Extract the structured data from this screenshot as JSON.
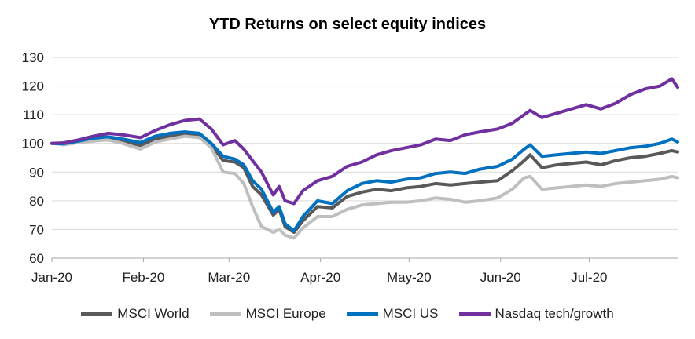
{
  "chart_data": {
    "type": "line",
    "title": "YTD Returns on select equity indices",
    "xlabel": "",
    "ylabel": "",
    "ylim": [
      60,
      130
    ],
    "yticks": [
      60,
      70,
      80,
      90,
      100,
      110,
      120,
      130
    ],
    "xlim": [
      "2020-01-01",
      "2020-07-31"
    ],
    "xticks": [
      "2020-01-01",
      "2020-02-01",
      "2020-03-01",
      "2020-04-01",
      "2020-05-01",
      "2020-06-01",
      "2020-07-01"
    ],
    "xtick_labels": [
      "Jan-20",
      "Feb-20",
      "Mar-20",
      "Apr-20",
      "May-20",
      "Jun-20",
      "Jul-20"
    ],
    "grid": "horizontal",
    "legend_position": "bottom",
    "series": [
      {
        "name": "MSCI World",
        "color": "#595959",
        "x": [
          "2020-01-01",
          "2020-01-05",
          "2020-01-10",
          "2020-01-15",
          "2020-01-20",
          "2020-01-25",
          "2020-01-31",
          "2020-02-05",
          "2020-02-10",
          "2020-02-15",
          "2020-02-20",
          "2020-02-24",
          "2020-02-28",
          "2020-03-03",
          "2020-03-06",
          "2020-03-09",
          "2020-03-12",
          "2020-03-16",
          "2020-03-18",
          "2020-03-20",
          "2020-03-23",
          "2020-03-26",
          "2020-03-31",
          "2020-04-05",
          "2020-04-10",
          "2020-04-15",
          "2020-04-20",
          "2020-04-25",
          "2020-04-30",
          "2020-05-05",
          "2020-05-10",
          "2020-05-15",
          "2020-05-20",
          "2020-05-25",
          "2020-05-31",
          "2020-06-05",
          "2020-06-09",
          "2020-06-11",
          "2020-06-15",
          "2020-06-20",
          "2020-06-25",
          "2020-06-30",
          "2020-07-05",
          "2020-07-10",
          "2020-07-15",
          "2020-07-20",
          "2020-07-25",
          "2020-07-29",
          "2020-07-31"
        ],
        "values": [
          100,
          99.8,
          100.6,
          101.4,
          101.9,
          100.8,
          99.3,
          101.5,
          102.4,
          103,
          102.5,
          99.5,
          94,
          93.5,
          91.5,
          85,
          82,
          75,
          77,
          71,
          69,
          73,
          78,
          77.5,
          81.5,
          83,
          84,
          83.5,
          84.5,
          85,
          86,
          85.5,
          86,
          86.5,
          87,
          90.5,
          94,
          96,
          91.5,
          92.5,
          93,
          93.5,
          92.5,
          94,
          95,
          95.5,
          96.5,
          97.5,
          97
        ]
      },
      {
        "name": "MSCI Europe",
        "color": "#bfbfbf",
        "x": [
          "2020-01-01",
          "2020-01-05",
          "2020-01-10",
          "2020-01-15",
          "2020-01-20",
          "2020-01-25",
          "2020-01-31",
          "2020-02-05",
          "2020-02-10",
          "2020-02-15",
          "2020-02-20",
          "2020-02-24",
          "2020-02-28",
          "2020-03-03",
          "2020-03-06",
          "2020-03-09",
          "2020-03-12",
          "2020-03-16",
          "2020-03-18",
          "2020-03-20",
          "2020-03-23",
          "2020-03-26",
          "2020-03-31",
          "2020-04-05",
          "2020-04-10",
          "2020-04-15",
          "2020-04-20",
          "2020-04-25",
          "2020-04-30",
          "2020-05-05",
          "2020-05-10",
          "2020-05-15",
          "2020-05-20",
          "2020-05-25",
          "2020-05-31",
          "2020-06-05",
          "2020-06-09",
          "2020-06-11",
          "2020-06-15",
          "2020-06-20",
          "2020-06-25",
          "2020-06-30",
          "2020-07-05",
          "2020-07-10",
          "2020-07-15",
          "2020-07-20",
          "2020-07-25",
          "2020-07-29",
          "2020-07-31"
        ],
        "values": [
          100,
          99.5,
          100.3,
          100.8,
          101.2,
          100,
          98,
          100.5,
          101.5,
          102.5,
          102,
          98.5,
          90,
          89.5,
          86,
          78,
          71,
          69,
          70,
          68,
          67,
          70.5,
          74.5,
          74.5,
          77,
          78.5,
          79,
          79.5,
          79.5,
          80,
          81,
          80.5,
          79.5,
          80,
          81,
          84,
          88,
          88.5,
          84,
          84.5,
          85,
          85.5,
          85,
          86,
          86.5,
          87,
          87.5,
          88.5,
          88
        ]
      },
      {
        "name": "MSCI US",
        "color": "#0070c0",
        "x": [
          "2020-01-01",
          "2020-01-05",
          "2020-01-10",
          "2020-01-15",
          "2020-01-20",
          "2020-01-25",
          "2020-01-31",
          "2020-02-05",
          "2020-02-10",
          "2020-02-15",
          "2020-02-20",
          "2020-02-24",
          "2020-02-28",
          "2020-03-03",
          "2020-03-06",
          "2020-03-09",
          "2020-03-12",
          "2020-03-16",
          "2020-03-18",
          "2020-03-20",
          "2020-03-23",
          "2020-03-26",
          "2020-03-31",
          "2020-04-05",
          "2020-04-10",
          "2020-04-15",
          "2020-04-20",
          "2020-04-25",
          "2020-04-30",
          "2020-05-05",
          "2020-05-10",
          "2020-05-15",
          "2020-05-20",
          "2020-05-25",
          "2020-05-31",
          "2020-06-05",
          "2020-06-09",
          "2020-06-11",
          "2020-06-15",
          "2020-06-20",
          "2020-06-25",
          "2020-06-30",
          "2020-07-05",
          "2020-07-10",
          "2020-07-15",
          "2020-07-20",
          "2020-07-25",
          "2020-07-29",
          "2020-07-31"
        ],
        "values": [
          100,
          99.9,
          100.8,
          101.8,
          102.3,
          101.5,
          100.3,
          102.5,
          103.5,
          104,
          103.5,
          100,
          95.5,
          94.5,
          92.5,
          87,
          84,
          76,
          78,
          72,
          69.5,
          74.5,
          80,
          79,
          83.5,
          86,
          87,
          86.5,
          87.5,
          88,
          89.5,
          90,
          89.5,
          91,
          92,
          94.5,
          98,
          99.5,
          95.5,
          96,
          96.5,
          97,
          96.5,
          97.5,
          98.5,
          99,
          100,
          101.5,
          100.5
        ]
      },
      {
        "name": "Nasdaq tech/growth",
        "color": "#7030a0",
        "x": [
          "2020-01-01",
          "2020-01-05",
          "2020-01-10",
          "2020-01-15",
          "2020-01-20",
          "2020-01-25",
          "2020-01-31",
          "2020-02-05",
          "2020-02-10",
          "2020-02-15",
          "2020-02-20",
          "2020-02-24",
          "2020-02-28",
          "2020-03-03",
          "2020-03-06",
          "2020-03-09",
          "2020-03-12",
          "2020-03-16",
          "2020-03-18",
          "2020-03-20",
          "2020-03-23",
          "2020-03-26",
          "2020-03-31",
          "2020-04-05",
          "2020-04-10",
          "2020-04-15",
          "2020-04-20",
          "2020-04-25",
          "2020-04-30",
          "2020-05-05",
          "2020-05-10",
          "2020-05-15",
          "2020-05-20",
          "2020-05-25",
          "2020-05-31",
          "2020-06-05",
          "2020-06-09",
          "2020-06-11",
          "2020-06-15",
          "2020-06-20",
          "2020-06-25",
          "2020-06-30",
          "2020-07-05",
          "2020-07-10",
          "2020-07-15",
          "2020-07-20",
          "2020-07-25",
          "2020-07-29",
          "2020-07-31"
        ],
        "values": [
          100,
          100.2,
          101.2,
          102.5,
          103.5,
          103,
          102,
          104.5,
          106.5,
          108,
          108.5,
          105,
          99.5,
          101,
          98,
          94,
          90,
          82,
          85,
          80,
          79,
          83.5,
          87,
          88.5,
          92,
          93.5,
          96,
          97.5,
          98.5,
          99.5,
          101.5,
          101,
          103,
          104,
          105,
          107,
          110,
          111.5,
          109,
          110.5,
          112,
          113.5,
          112,
          114,
          117,
          119,
          120,
          122.5,
          119.5
        ]
      }
    ]
  }
}
